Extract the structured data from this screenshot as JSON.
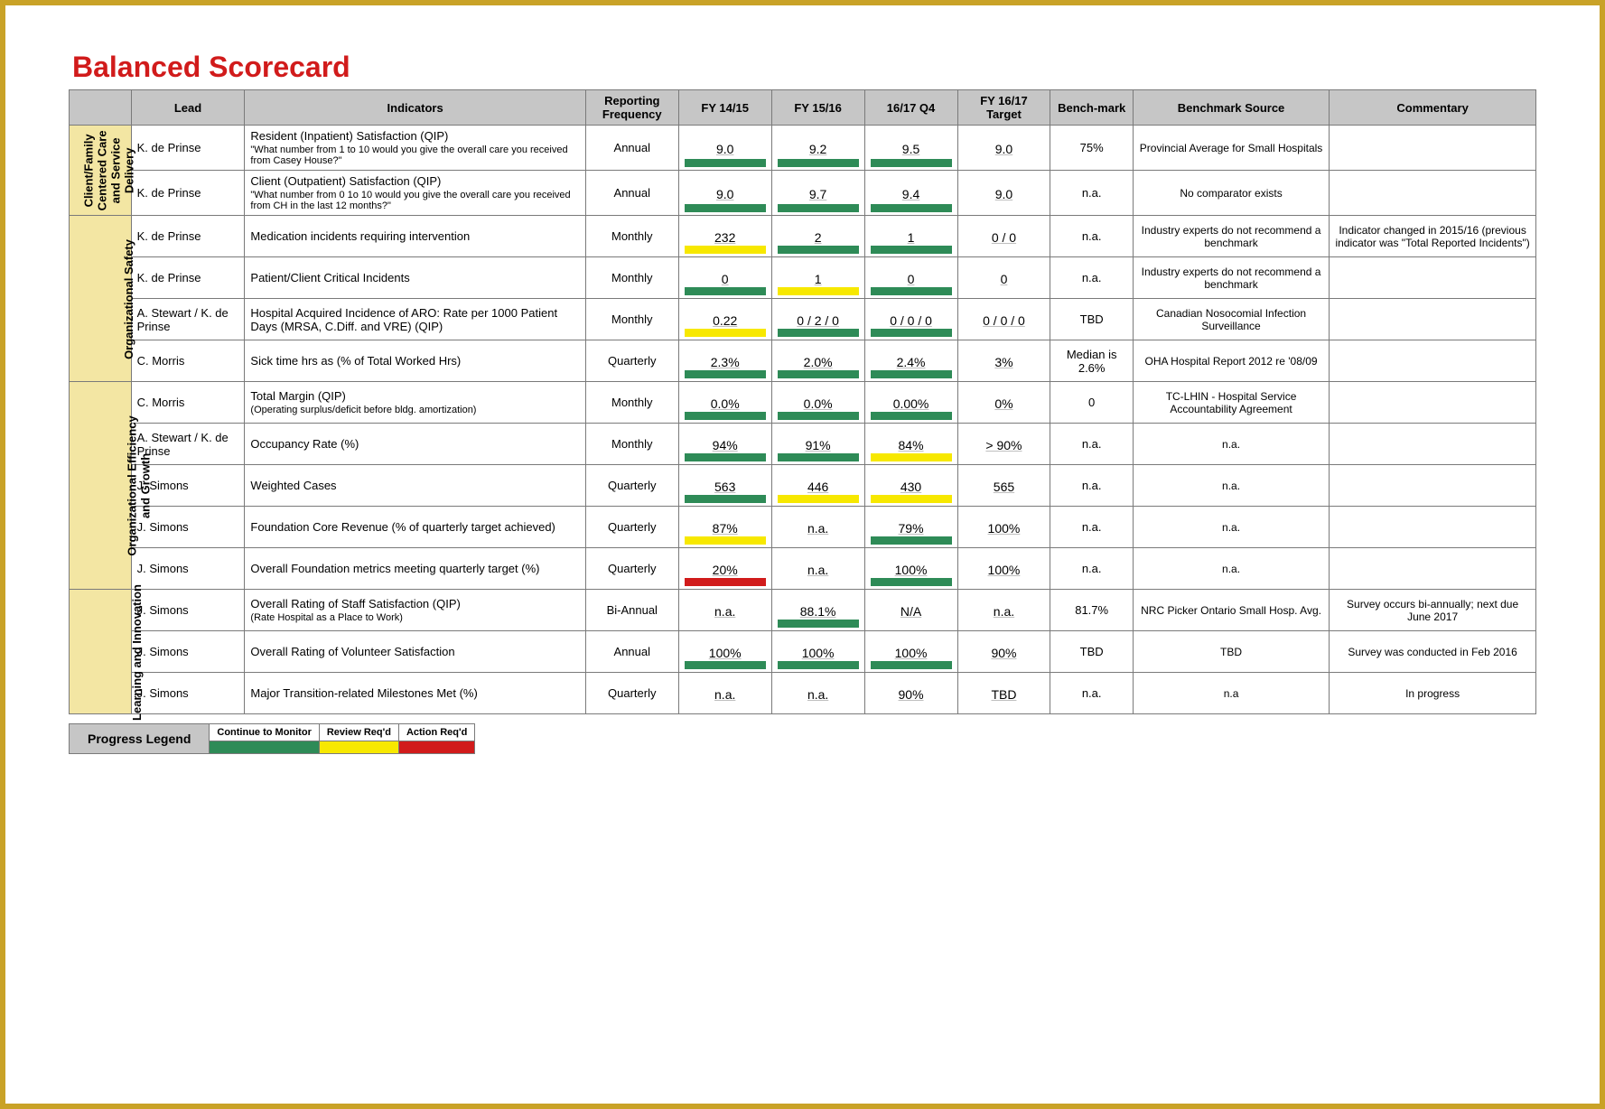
{
  "title": "Balanced Scorecard",
  "colors": {
    "green": "#2e8b57",
    "yellow": "#f7e800",
    "red": "#d11b1b",
    "header_bg": "#c6c6c6",
    "category_bg": "#f3e6a3",
    "title_color": "#d11b1b",
    "frame": "#c9a227"
  },
  "headers": {
    "lead": "Lead",
    "indicators": "Indicators",
    "freq": "Reporting Frequency",
    "fy1": "FY 14/15",
    "fy2": "FY 15/16",
    "fy3": "16/17 Q4",
    "fy4": "FY 16/17 Target",
    "bench": "Bench-mark",
    "src": "Benchmark Source",
    "com": "Commentary"
  },
  "categories": [
    {
      "label": "Client/Family\nCentered Care\nand Service\nDelivery",
      "rows": [
        {
          "lead": "K. de Prinse",
          "indicator": "Resident (Inpatient) Satisfaction (QIP)",
          "sub": "\"What number from 1 to 10 would you give the overall care you received from Casey House?\"",
          "freq": "Annual",
          "v1": {
            "val": "9.0",
            "bar": "green"
          },
          "v2": {
            "val": "9.2",
            "bar": "green"
          },
          "v3": {
            "val": "9.5",
            "bar": "green"
          },
          "v4": {
            "val": "9.0",
            "bar": ""
          },
          "bench": "75%",
          "src": "Provincial Average for Small Hospitals",
          "com": ""
        },
        {
          "lead": "K. de Prinse",
          "indicator": "Client (Outpatient) Satisfaction (QIP)",
          "sub": "\"What number from 0 1o 10 would you give the overall care you received from CH in the last 12 months?\"",
          "freq": "Annual",
          "v1": {
            "val": "9.0",
            "bar": "green"
          },
          "v2": {
            "val": "9.7",
            "bar": "green"
          },
          "v3": {
            "val": "9.4",
            "bar": "green"
          },
          "v4": {
            "val": "9.0",
            "bar": ""
          },
          "bench": "n.a.",
          "src": "No comparator exists",
          "com": ""
        }
      ]
    },
    {
      "label": "Organizational Safety",
      "rows": [
        {
          "lead": "K. de Prinse",
          "indicator": "Medication incidents requiring intervention",
          "sub": "",
          "freq": "Monthly",
          "v1": {
            "val": "232",
            "bar": "yellow"
          },
          "v2": {
            "val": "2",
            "bar": "green"
          },
          "v3": {
            "val": "1",
            "bar": "green"
          },
          "v4": {
            "val": "0 / 0",
            "bar": ""
          },
          "bench": "n.a.",
          "src": "Industry experts do not recommend a benchmark",
          "com": "Indicator changed in 2015/16 (previous indicator was \"Total Reported Incidents\")"
        },
        {
          "lead": "K. de Prinse",
          "indicator": "Patient/Client Critical Incidents",
          "sub": "",
          "freq": "Monthly",
          "v1": {
            "val": "0",
            "bar": "green"
          },
          "v2": {
            "val": "1",
            "bar": "yellow"
          },
          "v3": {
            "val": "0",
            "bar": "green"
          },
          "v4": {
            "val": "0",
            "bar": ""
          },
          "bench": "n.a.",
          "src": "Industry experts do not recommend a benchmark",
          "com": ""
        },
        {
          "lead": "A. Stewart / K. de Prinse",
          "indicator": "Hospital Acquired Incidence of ARO: Rate per 1000 Patient Days (MRSA, C.Diff. and VRE) (QIP)",
          "sub": "",
          "freq": "Monthly",
          "v1": {
            "val": "0.22",
            "bar": "yellow"
          },
          "v2": {
            "val": "0 / 2 / 0",
            "bar": "green"
          },
          "v3": {
            "val": "0 / 0 / 0",
            "bar": "green"
          },
          "v4": {
            "val": "0 / 0 / 0",
            "bar": ""
          },
          "bench": "TBD",
          "src": "Canadian Nosocomial Infection Surveillance",
          "com": ""
        },
        {
          "lead": "C. Morris",
          "indicator": "Sick time hrs as (% of Total Worked Hrs)",
          "sub": "",
          "freq": "Quarterly",
          "v1": {
            "val": "2.3%",
            "bar": "green"
          },
          "v2": {
            "val": "2.0%",
            "bar": "green"
          },
          "v3": {
            "val": "2.4%",
            "bar": "green"
          },
          "v4": {
            "val": "3%",
            "bar": ""
          },
          "bench": "Median is 2.6%",
          "src": "OHA Hospital Report 2012 re '08/09",
          "com": ""
        }
      ]
    },
    {
      "label": "Organizational Efficiency\nand Growth",
      "rows": [
        {
          "lead": "C. Morris",
          "indicator": "Total Margin (QIP)",
          "sub": "(Operating surplus/deficit before bldg. amortization)",
          "freq": "Monthly",
          "v1": {
            "val": "0.0%",
            "bar": "green"
          },
          "v2": {
            "val": "0.0%",
            "bar": "green"
          },
          "v3": {
            "val": "0.00%",
            "bar": "green"
          },
          "v4": {
            "val": "0%",
            "bar": ""
          },
          "bench": "0",
          "src": "TC-LHIN - Hospital Service Accountability Agreement",
          "com": ""
        },
        {
          "lead": "A. Stewart / K. de Prinse",
          "indicator": "Occupancy Rate (%)",
          "sub": "",
          "freq": "Monthly",
          "v1": {
            "val": "94%",
            "bar": "green"
          },
          "v2": {
            "val": "91%",
            "bar": "green"
          },
          "v3": {
            "val": "84%",
            "bar": "yellow"
          },
          "v4": {
            "val": "> 90%",
            "bar": ""
          },
          "bench": "n.a.",
          "src": "n.a.",
          "com": ""
        },
        {
          "lead": "J. Simons",
          "indicator": "Weighted Cases",
          "sub": "",
          "freq": "Quarterly",
          "v1": {
            "val": "563",
            "bar": "green"
          },
          "v2": {
            "val": "446",
            "bar": "yellow"
          },
          "v3": {
            "val": "430",
            "bar": "yellow"
          },
          "v4": {
            "val": "565",
            "bar": ""
          },
          "bench": "n.a.",
          "src": "n.a.",
          "com": ""
        },
        {
          "lead": "J. Simons",
          "indicator": "Foundation Core Revenue (% of quarterly target achieved)",
          "sub": "",
          "freq": "Quarterly",
          "v1": {
            "val": "87%",
            "bar": "yellow"
          },
          "v2": {
            "val": "n.a.",
            "bar": ""
          },
          "v3": {
            "val": "79%",
            "bar": "green"
          },
          "v4": {
            "val": "100%",
            "bar": ""
          },
          "bench": "n.a.",
          "src": "n.a.",
          "com": ""
        },
        {
          "lead": "J. Simons",
          "indicator": "Overall Foundation metrics meeting quarterly target (%)",
          "sub": "",
          "freq": "Quarterly",
          "v1": {
            "val": "20%",
            "bar": "red"
          },
          "v2": {
            "val": "n.a.",
            "bar": ""
          },
          "v3": {
            "val": "100%",
            "bar": "green"
          },
          "v4": {
            "val": "100%",
            "bar": ""
          },
          "bench": "n.a.",
          "src": "n.a.",
          "com": ""
        }
      ]
    },
    {
      "label": "Learning and Innovation",
      "rows": [
        {
          "lead": "J. Simons",
          "indicator": "Overall Rating of Staff Satisfaction (QIP)",
          "sub": "(Rate Hospital as a Place to Work)",
          "freq": "Bi-Annual",
          "v1": {
            "val": "n.a.",
            "bar": ""
          },
          "v2": {
            "val": "88.1%",
            "bar": "green"
          },
          "v3": {
            "val": "N/A",
            "bar": ""
          },
          "v4": {
            "val": "n.a.",
            "bar": ""
          },
          "bench": "81.7%",
          "src": "NRC Picker Ontario Small Hosp. Avg.",
          "com": "Survey occurs bi-annually; next due June 2017"
        },
        {
          "lead": "J. Simons",
          "indicator": "Overall Rating of Volunteer Satisfaction",
          "sub": "",
          "freq": "Annual",
          "v1": {
            "val": "100%",
            "bar": "green"
          },
          "v2": {
            "val": "100%",
            "bar": "green"
          },
          "v3": {
            "val": "100%",
            "bar": "green"
          },
          "v4": {
            "val": "90%",
            "bar": ""
          },
          "bench": "TBD",
          "src": "TBD",
          "com": "Survey was conducted in Feb 2016"
        },
        {
          "lead": "J. Simons",
          "indicator": "Major Transition-related Milestones Met (%)",
          "sub": "",
          "freq": "Quarterly",
          "v1": {
            "val": "n.a.",
            "bar": ""
          },
          "v2": {
            "val": "n.a.",
            "bar": ""
          },
          "v3": {
            "val": "90%",
            "bar": ""
          },
          "v4": {
            "val": "TBD",
            "bar": ""
          },
          "bench": "n.a.",
          "src": "n.a",
          "com": "In progress"
        }
      ]
    }
  ],
  "legend": {
    "title": "Progress Legend",
    "items": [
      {
        "label": "Continue to Monitor",
        "color": "green"
      },
      {
        "label": "Review Req'd",
        "color": "yellow"
      },
      {
        "label": "Action Req'd",
        "color": "red"
      }
    ]
  }
}
